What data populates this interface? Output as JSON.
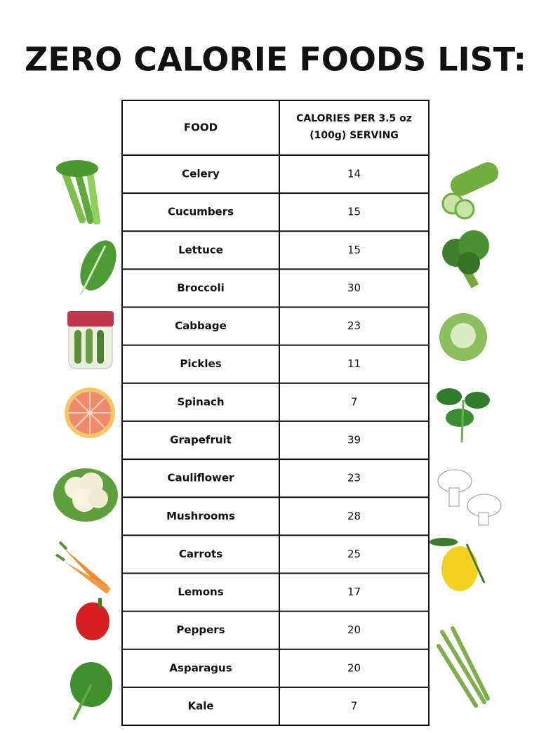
{
  "title": "ZERO CALORIE FOODS LIST:",
  "table": {
    "header": [
      "FOOD",
      "CALORIES PER 3.5 oz (100g) SERVING"
    ],
    "rows": [
      [
        "Celery",
        14
      ],
      [
        "Cucumbers",
        15
      ],
      [
        "Lettuce",
        15
      ],
      [
        "Broccoli",
        30
      ],
      [
        "Cabbage",
        23
      ],
      [
        "Pickles",
        11
      ],
      [
        "Spinach",
        7
      ],
      [
        "Grapefruit",
        39
      ],
      [
        "Cauliflower",
        23
      ],
      [
        "Mushrooms",
        28
      ],
      [
        "Carrots",
        25
      ],
      [
        "Lemons",
        17
      ],
      [
        "Peppers",
        20
      ],
      [
        "Asparagus",
        20
      ],
      [
        "Kale",
        7
      ]
    ]
  }
}
